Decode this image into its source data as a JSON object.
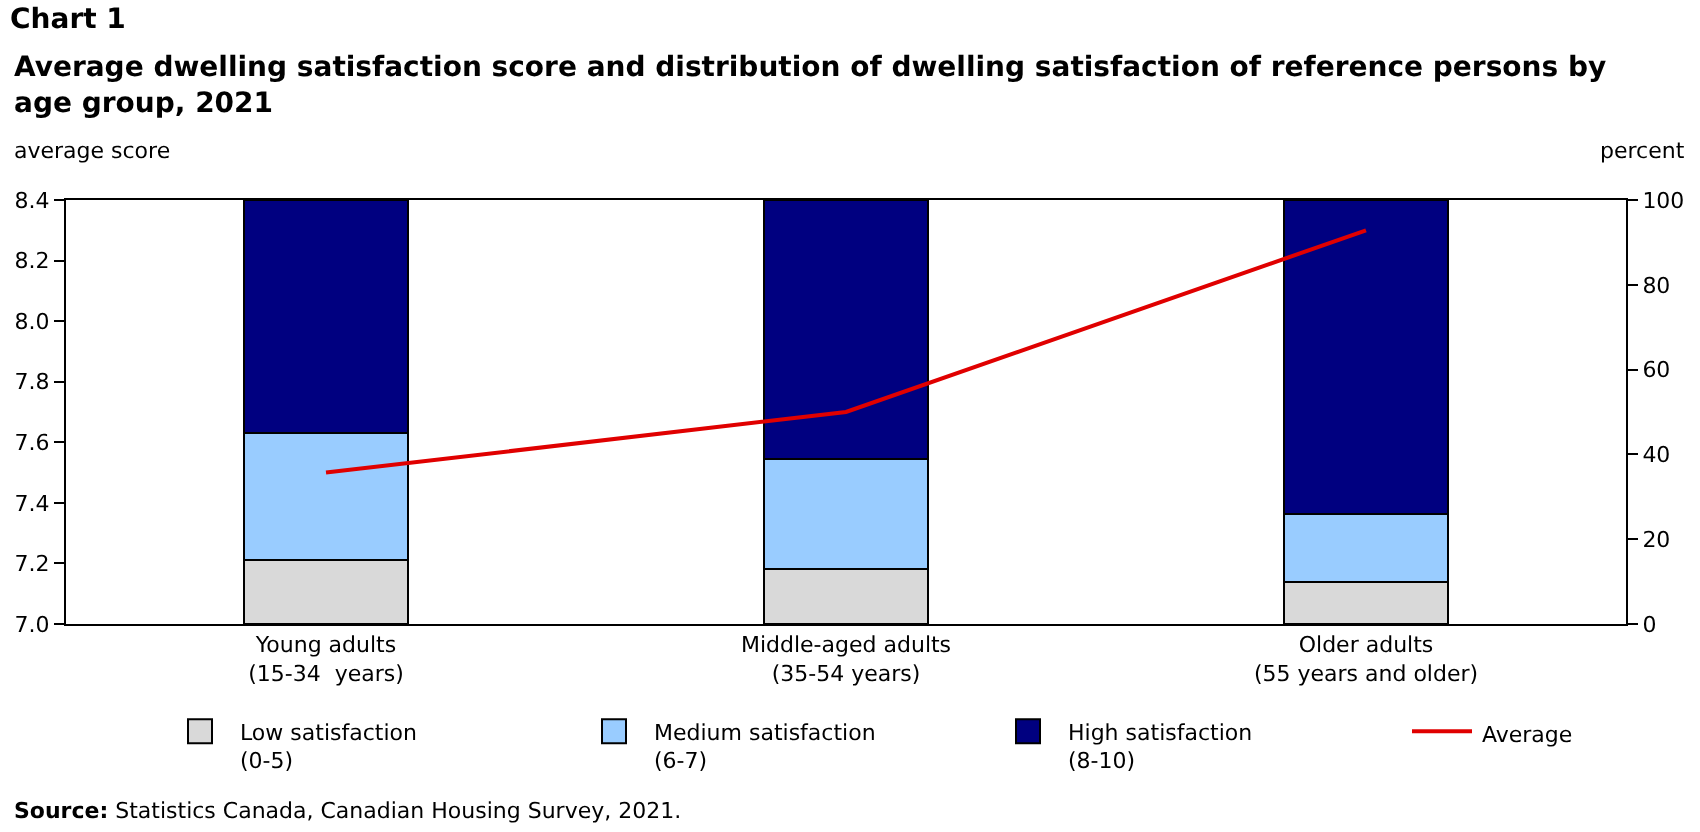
{
  "chart_data": {
    "type": "bar",
    "stacked": true,
    "title": "Chart 1",
    "subtitle": "Average dwelling satisfaction score and distribution of dwelling satisfaction of reference persons by age group, 2021",
    "ylabel": "average score",
    "y2label": "percent",
    "categories": [
      "Young adults\n(15-34  years)",
      "Middle-aged adults\n(35-54 years)",
      "Older adults\n(55 years and older)"
    ],
    "series": [
      {
        "name": "Low satisfaction\n(0-5)",
        "color": "#d9d9d9",
        "values": [
          15,
          13,
          10
        ],
        "axis": "y2"
      },
      {
        "name": "Medium satisfaction\n(6-7)",
        "color": "#99ccff",
        "values": [
          30,
          26,
          16
        ],
        "axis": "y2"
      },
      {
        "name": "High satisfaction\n(8-10)",
        "color": "#000080",
        "values": [
          55,
          61,
          74
        ],
        "axis": "y2"
      },
      {
        "name": "Average",
        "type": "line",
        "color": "#e00000",
        "values": [
          7.5,
          7.7,
          8.3
        ],
        "axis": "y"
      }
    ],
    "ylim": [
      7,
      8.4
    ],
    "yticks": [
      {
        "value": 7,
        "label": "7.0"
      },
      7.2,
      7.4,
      7.6,
      7.8,
      {
        "value": 8,
        "label": "8.0"
      },
      8.2,
      8.4
    ],
    "y2lim": [
      0,
      100
    ],
    "y2ticks": [
      0,
      20,
      40,
      60,
      80,
      100
    ],
    "grid": false,
    "legend": "bottom",
    "annotations": [
      "Source: Statistics Canada, Canadian Housing Survey, 2021."
    ]
  }
}
